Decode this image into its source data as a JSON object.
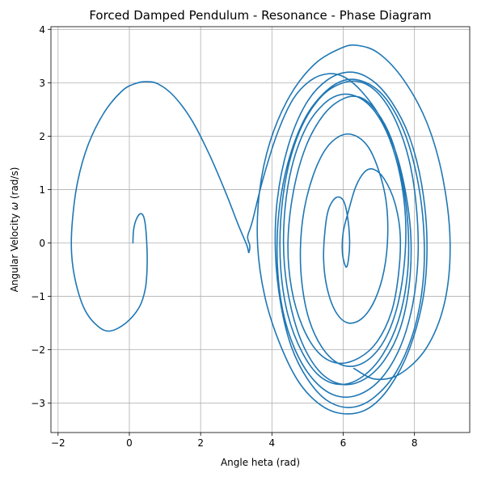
{
  "chart_data": {
    "type": "line",
    "title": "Forced Damped Pendulum - Resonance - Phase Diagram",
    "xlabel": "Angle $\\theta$ (rad)",
    "ylabel": "Angular Velocity $\\omega$ (rad/s)",
    "xlabel_display": "Angle heta (rad)",
    "ylabel_prefix": "Angular Velocity ",
    "ylabel_symbol": "ω",
    "ylabel_suffix": " (rad/s)",
    "xlim": [
      -2.2,
      9.55
    ],
    "ylim": [
      -3.55,
      4.05
    ],
    "xticks": [
      -2,
      0,
      2,
      4,
      6,
      8
    ],
    "yticks": [
      -3,
      -2,
      -1,
      0,
      1,
      2,
      3,
      4
    ],
    "grid": true,
    "line_color": "#1f77b4",
    "series": [
      {
        "points": [
          [
            0.1,
            0.0
          ],
          [
            0.12,
            0.25
          ],
          [
            0.2,
            0.45
          ],
          [
            0.32,
            0.55
          ],
          [
            0.42,
            0.45
          ],
          [
            0.48,
            0.1
          ],
          [
            0.5,
            -0.4
          ],
          [
            0.45,
            -0.85
          ],
          [
            0.28,
            -1.2
          ],
          [
            -0.1,
            -1.5
          ],
          [
            -0.55,
            -1.65
          ],
          [
            -0.9,
            -1.55
          ],
          [
            -1.25,
            -1.25
          ],
          [
            -1.5,
            -0.75
          ],
          [
            -1.62,
            -0.2
          ],
          [
            -1.6,
            0.4
          ],
          [
            -1.45,
            1.15
          ],
          [
            -1.15,
            1.85
          ],
          [
            -0.7,
            2.45
          ],
          [
            -0.2,
            2.85
          ],
          [
            0.15,
            2.98
          ],
          [
            0.45,
            3.02
          ],
          [
            0.8,
            2.98
          ],
          [
            1.25,
            2.75
          ],
          [
            1.75,
            2.3
          ],
          [
            2.25,
            1.65
          ],
          [
            2.7,
            0.95
          ],
          [
            3.05,
            0.35
          ],
          [
            3.3,
            -0.05
          ],
          [
            3.35,
            -0.18
          ],
          [
            3.38,
            -0.05
          ],
          [
            3.32,
            0.12
          ],
          [
            3.45,
            0.4
          ],
          [
            3.75,
            1.2
          ],
          [
            4.15,
            2.05
          ],
          [
            4.6,
            2.7
          ],
          [
            5.1,
            3.05
          ],
          [
            5.6,
            3.17
          ],
          [
            6.05,
            3.1
          ],
          [
            6.5,
            2.85
          ],
          [
            7.0,
            2.4
          ],
          [
            7.45,
            1.75
          ],
          [
            7.75,
            0.95
          ],
          [
            7.9,
            0.1
          ],
          [
            7.85,
            -0.8
          ],
          [
            7.6,
            -1.6
          ],
          [
            7.15,
            -2.2
          ],
          [
            6.6,
            -2.55
          ],
          [
            6.0,
            -2.65
          ],
          [
            5.4,
            -2.45
          ],
          [
            4.9,
            -1.95
          ],
          [
            4.55,
            -1.25
          ],
          [
            4.35,
            -0.4
          ],
          [
            4.35,
            0.5
          ],
          [
            4.55,
            1.4
          ],
          [
            4.95,
            2.15
          ],
          [
            5.45,
            2.6
          ],
          [
            5.95,
            2.78
          ],
          [
            6.45,
            2.72
          ],
          [
            6.9,
            2.45
          ],
          [
            7.3,
            1.95
          ],
          [
            7.6,
            1.25
          ],
          [
            7.75,
            0.45
          ],
          [
            7.72,
            -0.35
          ],
          [
            7.55,
            -1.1
          ],
          [
            7.25,
            -1.7
          ],
          [
            6.85,
            -2.1
          ],
          [
            6.35,
            -2.3
          ],
          [
            5.85,
            -2.25
          ],
          [
            5.4,
            -1.95
          ],
          [
            5.05,
            -1.45
          ],
          [
            4.85,
            -0.8
          ],
          [
            4.8,
            -0.1
          ],
          [
            4.9,
            0.6
          ],
          [
            5.15,
            1.25
          ],
          [
            5.5,
            1.75
          ],
          [
            5.9,
            2.0
          ],
          [
            6.3,
            2.02
          ],
          [
            6.7,
            1.8
          ],
          [
            7.0,
            1.35
          ],
          [
            7.2,
            0.8
          ],
          [
            7.25,
            0.15
          ],
          [
            7.15,
            -0.5
          ],
          [
            6.9,
            -1.05
          ],
          [
            6.55,
            -1.4
          ],
          [
            6.15,
            -1.5
          ],
          [
            5.8,
            -1.3
          ],
          [
            5.55,
            -0.85
          ],
          [
            5.45,
            -0.3
          ],
          [
            5.5,
            0.3
          ],
          [
            5.6,
            0.65
          ],
          [
            5.8,
            0.85
          ],
          [
            6.0,
            0.8
          ],
          [
            6.12,
            0.5
          ],
          [
            6.18,
            0.05
          ],
          [
            6.15,
            -0.3
          ],
          [
            6.08,
            -0.45
          ],
          [
            5.98,
            -0.2
          ],
          [
            6.0,
            0.2
          ],
          [
            6.15,
            0.6
          ],
          [
            6.35,
            1.05
          ],
          [
            6.6,
            1.33
          ],
          [
            6.85,
            1.38
          ],
          [
            7.15,
            1.2
          ],
          [
            7.45,
            0.75
          ],
          [
            7.6,
            0.15
          ],
          [
            7.55,
            -0.6
          ],
          [
            7.35,
            -1.3
          ],
          [
            6.95,
            -1.85
          ],
          [
            6.45,
            -2.15
          ],
          [
            5.85,
            -2.25
          ],
          [
            5.3,
            -2.05
          ],
          [
            4.85,
            -1.55
          ],
          [
            4.55,
            -0.85
          ],
          [
            4.45,
            0.0
          ],
          [
            4.6,
            0.95
          ],
          [
            4.95,
            1.8
          ],
          [
            5.45,
            2.4
          ],
          [
            6.0,
            2.7
          ],
          [
            6.5,
            2.72
          ],
          [
            6.95,
            2.45
          ],
          [
            7.35,
            1.95
          ],
          [
            7.65,
            1.2
          ],
          [
            7.82,
            0.3
          ],
          [
            7.8,
            -0.6
          ],
          [
            7.55,
            -1.45
          ],
          [
            7.1,
            -2.1
          ],
          [
            6.55,
            -2.5
          ],
          [
            5.95,
            -2.65
          ],
          [
            5.35,
            -2.5
          ],
          [
            4.85,
            -2.05
          ],
          [
            4.45,
            -1.35
          ],
          [
            4.25,
            -0.5
          ],
          [
            4.25,
            0.45
          ],
          [
            4.45,
            1.4
          ],
          [
            4.85,
            2.2
          ],
          [
            5.4,
            2.75
          ],
          [
            6.0,
            3.0
          ],
          [
            6.55,
            3.0
          ],
          [
            7.05,
            2.75
          ],
          [
            7.5,
            2.25
          ],
          [
            7.85,
            1.55
          ],
          [
            8.05,
            0.7
          ],
          [
            8.1,
            -0.25
          ],
          [
            7.95,
            -1.15
          ],
          [
            7.6,
            -1.95
          ],
          [
            7.05,
            -2.55
          ],
          [
            6.4,
            -2.85
          ],
          [
            5.75,
            -2.85
          ],
          [
            5.15,
            -2.55
          ],
          [
            4.65,
            -2.0
          ],
          [
            4.3,
            -1.25
          ],
          [
            4.15,
            -0.35
          ],
          [
            4.2,
            0.6
          ],
          [
            4.45,
            1.5
          ],
          [
            4.9,
            2.3
          ],
          [
            5.45,
            2.8
          ],
          [
            6.05,
            3.05
          ],
          [
            6.65,
            3.0
          ],
          [
            7.2,
            2.7
          ],
          [
            7.7,
            2.1
          ],
          [
            8.05,
            1.3
          ],
          [
            8.25,
            0.35
          ],
          [
            8.25,
            -0.65
          ],
          [
            8.0,
            -1.6
          ],
          [
            7.5,
            -2.4
          ],
          [
            6.85,
            -2.9
          ],
          [
            6.2,
            -3.08
          ],
          [
            5.55,
            -2.95
          ],
          [
            5.0,
            -2.55
          ],
          [
            4.55,
            -1.95
          ],
          [
            4.25,
            -1.15
          ],
          [
            4.1,
            -0.2
          ],
          [
            4.15,
            0.8
          ],
          [
            4.45,
            1.8
          ],
          [
            4.95,
            2.6
          ],
          [
            5.55,
            3.05
          ],
          [
            6.2,
            3.2
          ],
          [
            6.8,
            3.05
          ],
          [
            7.35,
            2.65
          ],
          [
            7.85,
            2.0
          ],
          [
            8.2,
            1.1
          ],
          [
            8.35,
            0.05
          ],
          [
            8.25,
            -1.0
          ],
          [
            7.85,
            -2.0
          ],
          [
            7.3,
            -2.7
          ],
          [
            6.7,
            -3.1
          ],
          [
            6.05,
            -3.2
          ],
          [
            5.4,
            -3.05
          ],
          [
            4.75,
            -2.6
          ],
          [
            4.2,
            -1.85
          ],
          [
            3.8,
            -1.0
          ],
          [
            3.6,
            -0.05
          ],
          [
            3.65,
            0.95
          ],
          [
            3.95,
            1.9
          ],
          [
            4.5,
            2.75
          ],
          [
            5.2,
            3.35
          ],
          [
            5.95,
            3.65
          ],
          [
            6.4,
            3.7
          ],
          [
            7.0,
            3.55
          ],
          [
            7.7,
            3.05
          ],
          [
            8.35,
            2.25
          ],
          [
            8.8,
            1.2
          ],
          [
            9.0,
            0.0
          ],
          [
            8.85,
            -1.1
          ],
          [
            8.35,
            -1.95
          ],
          [
            7.6,
            -2.45
          ],
          [
            6.9,
            -2.55
          ],
          [
            6.3,
            -2.35
          ]
        ]
      }
    ]
  }
}
